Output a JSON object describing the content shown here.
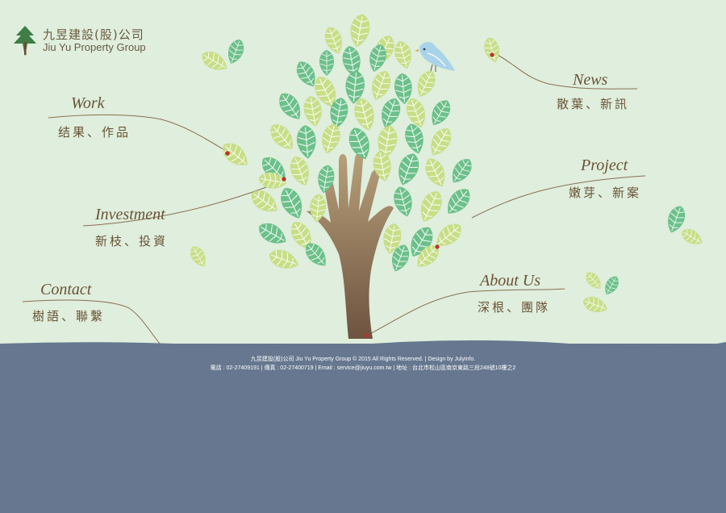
{
  "logo": {
    "name_cn": "九昱建設(股)公司",
    "name_en": "Jiu Yu Property Group",
    "icon": "pine-tree-icon"
  },
  "nav": {
    "work": {
      "title": "Work",
      "subtitle": "结果、作品"
    },
    "investment": {
      "title": "Investment",
      "subtitle": "新枝、投資"
    },
    "contact": {
      "title": "Contact",
      "subtitle": "樹語、聯繫"
    },
    "news": {
      "title": "News",
      "subtitle": "散葉、新訊"
    },
    "project": {
      "title": "Project",
      "subtitle": "嫩芽、新案"
    },
    "about": {
      "title": "About Us",
      "subtitle": "深根、團隊"
    }
  },
  "footer": {
    "line1": "九昱建設(股)公司 Jiu Yu Property Group © 2015 All Rights Reserved.  |  Design by Julyinfo.",
    "line2": "電話 : 02-27409191  |  傳真 : 02-27400719  |  Email : service@jiuyu.com.tw  |  地址 : 台北市松山區南京東路三段248號10樓之2"
  },
  "colors": {
    "sky": "#dfeedd",
    "ground": "#66778f",
    "text": "#6a5336",
    "leaf_light": "#c7de86",
    "leaf_dark": "#6cc08a",
    "trunk": "#8a7058"
  }
}
